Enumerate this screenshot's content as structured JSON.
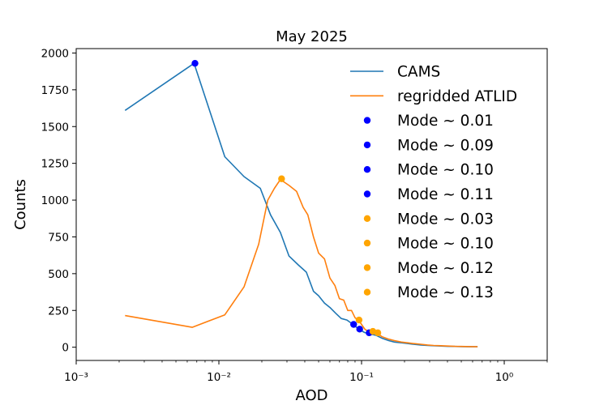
{
  "chart_data": {
    "type": "line",
    "title": "May 2025",
    "xlabel": "AOD",
    "ylabel": "Counts",
    "xscale": "log",
    "xlim": [
      0.001,
      2.0
    ],
    "ylim": [
      -90,
      2030
    ],
    "x_ticks": [
      {
        "value": 0.001,
        "label": "10⁻³"
      },
      {
        "value": 0.01,
        "label": "10⁻²"
      },
      {
        "value": 0.1,
        "label": "10⁻¹"
      },
      {
        "value": 1,
        "label": "10⁰"
      }
    ],
    "y_ticks": [
      0,
      250,
      500,
      750,
      1000,
      1250,
      1500,
      1750,
      2000
    ],
    "grid": false,
    "legend_position": "top-right",
    "series": [
      {
        "name": "CAMS",
        "kind": "line",
        "color": "#1f77b4",
        "x": [
          0.0022,
          0.0067,
          0.011,
          0.015,
          0.0195,
          0.023,
          0.027,
          0.031,
          0.036,
          0.041,
          0.046,
          0.05,
          0.055,
          0.06,
          0.066,
          0.072,
          0.079,
          0.087,
          0.095,
          0.105,
          0.115,
          0.127,
          0.14,
          0.155,
          0.17,
          0.19,
          0.21,
          0.23,
          0.26,
          0.29,
          0.32,
          0.36,
          0.4,
          0.45,
          0.5,
          0.57,
          0.65
        ],
        "y": [
          1610,
          1930,
          1295,
          1160,
          1080,
          900,
          780,
          620,
          560,
          510,
          380,
          350,
          300,
          270,
          230,
          195,
          185,
          155,
          125,
          100,
          90,
          80,
          60,
          45,
          35,
          30,
          25,
          20,
          15,
          12,
          10,
          8,
          6,
          5,
          4,
          3,
          3
        ]
      },
      {
        "name": "regridded ATLID",
        "kind": "line",
        "color": "#ff7f0e",
        "x": [
          0.0022,
          0.0065,
          0.011,
          0.015,
          0.019,
          0.022,
          0.0245,
          0.027,
          0.031,
          0.035,
          0.039,
          0.042,
          0.046,
          0.05,
          0.055,
          0.06,
          0.065,
          0.07,
          0.075,
          0.08,
          0.085,
          0.09,
          0.095,
          0.1,
          0.105,
          0.11,
          0.12,
          0.13,
          0.14,
          0.155,
          0.17,
          0.19,
          0.21,
          0.23,
          0.26,
          0.29,
          0.32,
          0.36,
          0.4,
          0.45,
          0.5,
          0.57,
          0.65
        ],
        "y": [
          215,
          135,
          220,
          410,
          700,
          1000,
          1080,
          1140,
          1100,
          1060,
          950,
          900,
          750,
          640,
          600,
          470,
          420,
          330,
          320,
          250,
          250,
          200,
          185,
          155,
          125,
          110,
          105,
          90,
          70,
          55,
          45,
          35,
          30,
          25,
          20,
          15,
          12,
          10,
          8,
          6,
          5,
          4,
          3
        ]
      }
    ],
    "markers": [
      {
        "label": "Mode ~ 0.01",
        "color": "#0000ff",
        "x": 0.0068,
        "y": 1930
      },
      {
        "label": "Mode ~ 0.09",
        "color": "#0000ff",
        "x": 0.088,
        "y": 155
      },
      {
        "label": "Mode ~ 0.10",
        "color": "#0000ff",
        "x": 0.097,
        "y": 123
      },
      {
        "label": "Mode ~ 0.11",
        "color": "#0000ff",
        "x": 0.113,
        "y": 98
      },
      {
        "label": "Mode ~ 0.03",
        "color": "#ffa500",
        "x": 0.0275,
        "y": 1145
      },
      {
        "label": "Mode ~ 0.10",
        "color": "#ffa500",
        "x": 0.096,
        "y": 185
      },
      {
        "label": "Mode ~ 0.12",
        "color": "#ffa500",
        "x": 0.12,
        "y": 108
      },
      {
        "label": "Mode ~ 0.13",
        "color": "#ffa500",
        "x": 0.13,
        "y": 98
      }
    ]
  }
}
